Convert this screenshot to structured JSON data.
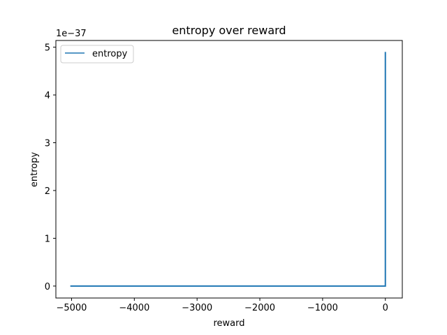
{
  "chart_data": {
    "type": "line",
    "title": "entropy over reward",
    "xlabel": "reward",
    "ylabel": "entropy",
    "xlim": [
      -5250,
      270
    ],
    "ylim": [
      -0.25,
      5.14
    ],
    "y_scale_label": "1e−37",
    "x_ticks": [
      {
        "value": -5000,
        "label": "−5000"
      },
      {
        "value": -4000,
        "label": "−4000"
      },
      {
        "value": -3000,
        "label": "−3000"
      },
      {
        "value": -2000,
        "label": "−2000"
      },
      {
        "value": -1000,
        "label": "−1000"
      },
      {
        "value": 0,
        "label": "0"
      }
    ],
    "y_ticks": [
      {
        "value": 0,
        "label": "0"
      },
      {
        "value": 1,
        "label": "1"
      },
      {
        "value": 2,
        "label": "2"
      },
      {
        "value": 3,
        "label": "3"
      },
      {
        "value": 4,
        "label": "4"
      },
      {
        "value": 5,
        "label": "5"
      }
    ],
    "grid": false,
    "legend": "upper left",
    "series": [
      {
        "name": "entropy",
        "color": "#1f77b4",
        "x": [
          -5020,
          -3000,
          -1000,
          -5,
          0,
          0
        ],
        "y": [
          0,
          0,
          0,
          0,
          0,
          4.9
        ]
      }
    ]
  }
}
